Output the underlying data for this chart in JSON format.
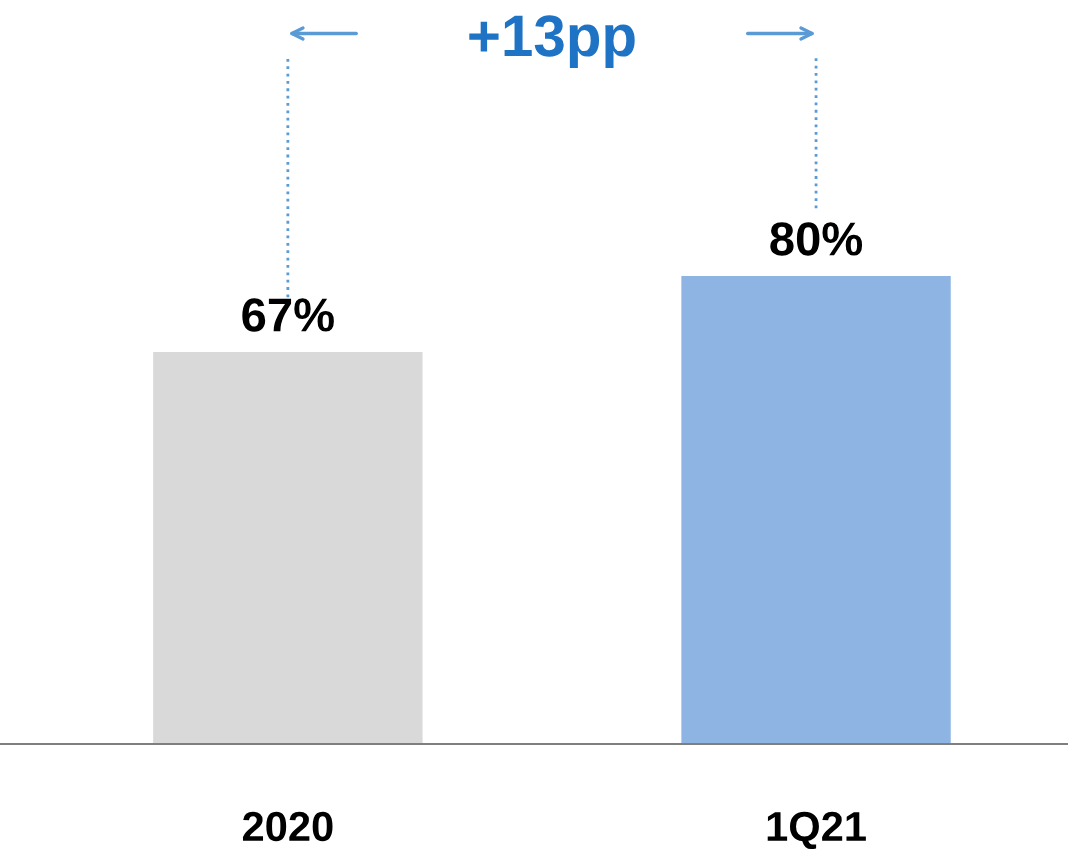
{
  "chart_data": {
    "type": "bar",
    "categories": [
      "2020",
      "1Q21"
    ],
    "values": [
      67,
      80
    ],
    "colors": [
      "#d9d9d9",
      "#8eb4e3"
    ],
    "value_labels": [
      "67%",
      "80%"
    ],
    "annotations": [
      "+13pp"
    ]
  }
}
